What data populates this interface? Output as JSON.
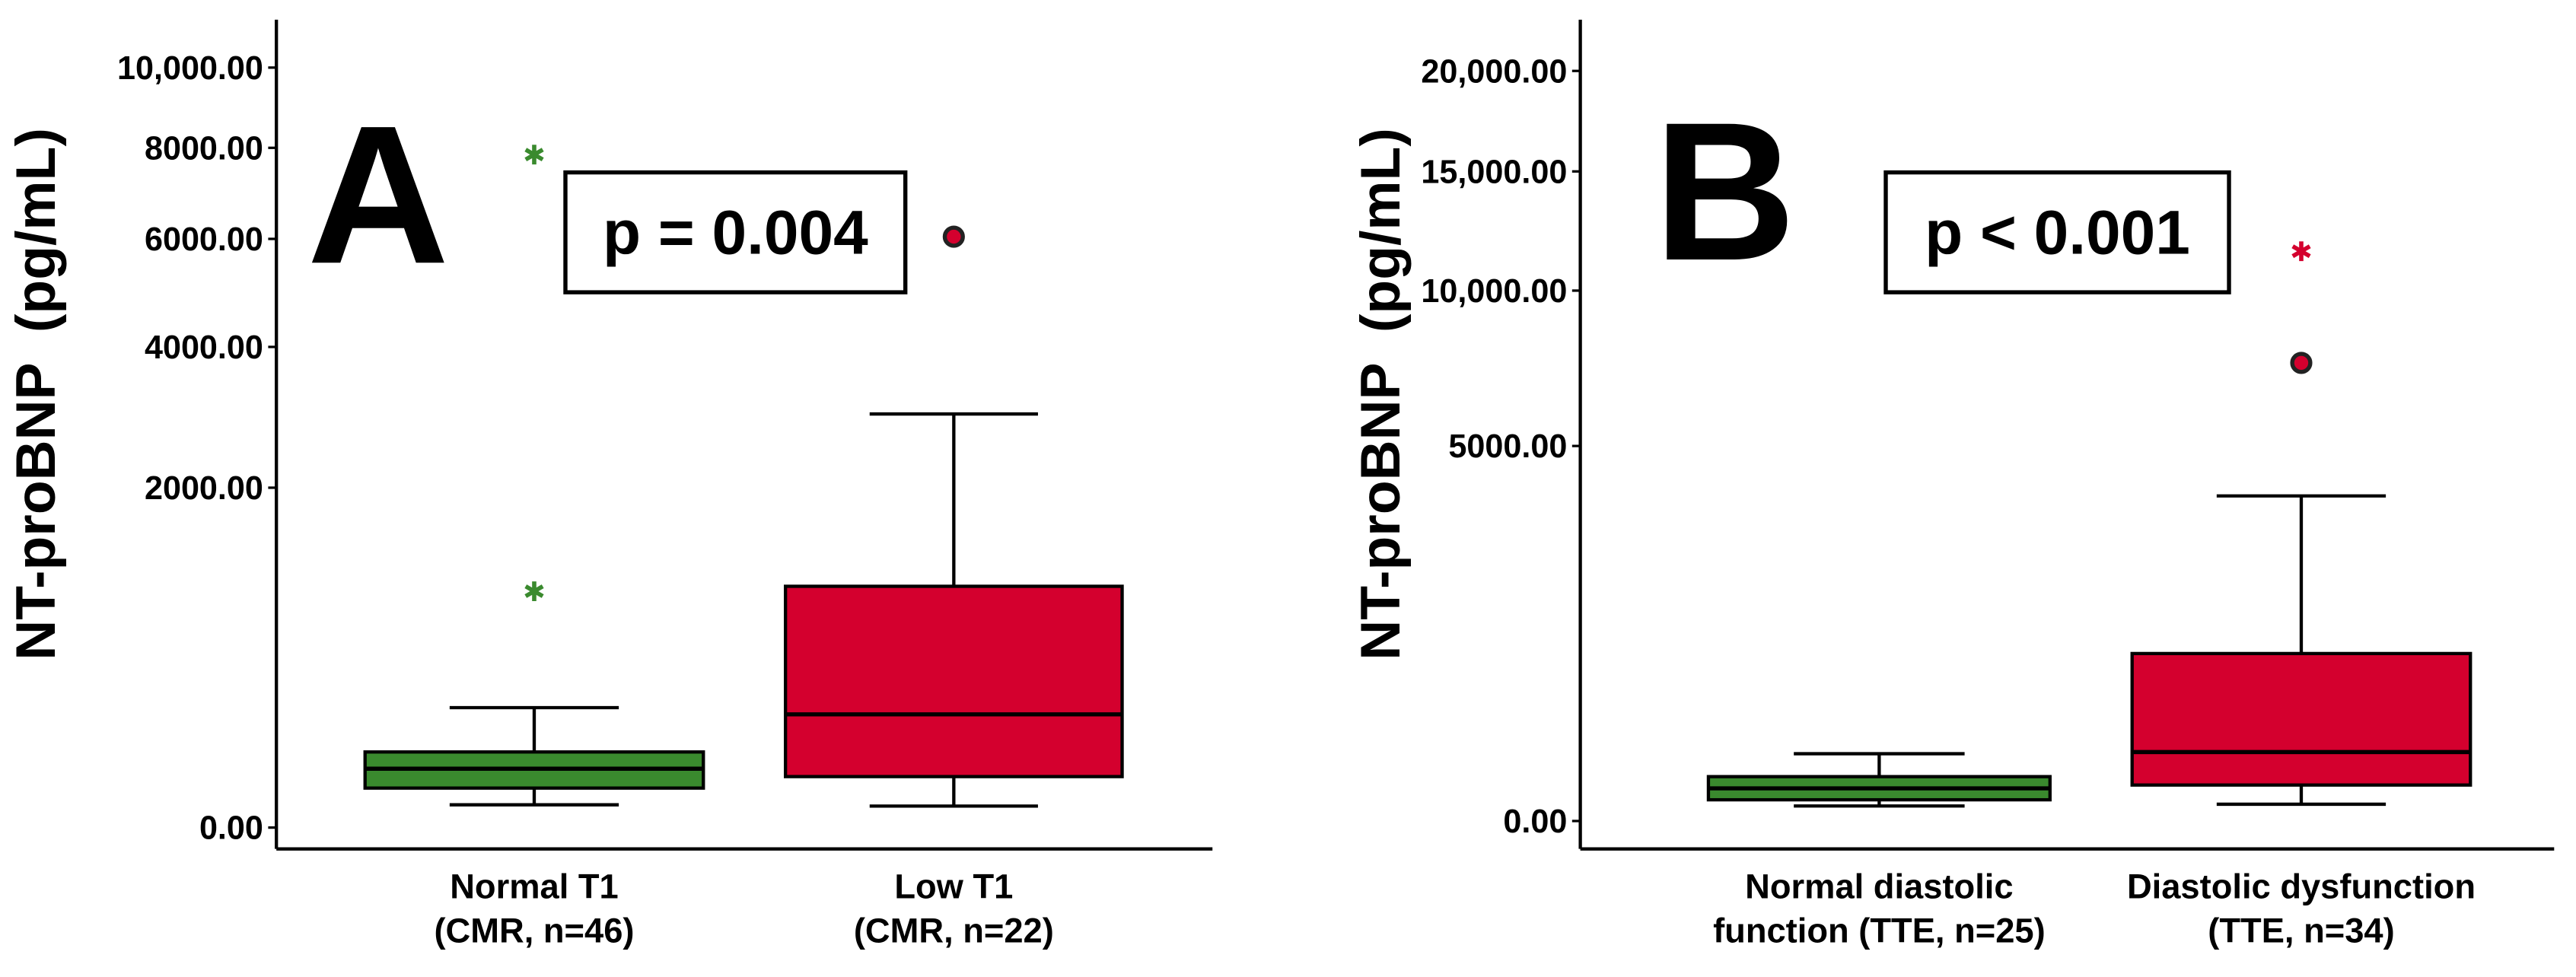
{
  "chart_data": [
    {
      "type": "box",
      "panel_label": "A",
      "annotation": "p = 0.004",
      "ylabel": "NT-proBNP  (pg/mL)",
      "yscale": "sqrt",
      "ylim": [
        0,
        11300
      ],
      "yticks": [
        {
          "value": 0,
          "label": "0.00"
        },
        {
          "value": 2000,
          "label": "2000.00"
        },
        {
          "value": 4000,
          "label": "4000.00"
        },
        {
          "value": 6000,
          "label": "6000.00"
        },
        {
          "value": 8000,
          "label": "8000.00"
        },
        {
          "value": 10000,
          "label": "10,000.00"
        }
      ],
      "categories": [
        [
          "Normal T1",
          "(CMR, n=46)"
        ],
        [
          "Low T1",
          "(CMR, n=22)"
        ]
      ],
      "series": [
        {
          "color": "#3a8a2e",
          "whisker_low": 9,
          "q1": 27,
          "median": 60,
          "q3": 99,
          "whisker_high": 249,
          "outliers": [
            {
              "value": 967,
              "marker": "star"
            },
            {
              "value": 7842,
              "marker": "star"
            }
          ]
        },
        {
          "color": "#d4002e",
          "whisker_low": 8,
          "q1": 45,
          "median": 222,
          "q3": 1008,
          "whisker_high": 2962,
          "outliers": [
            {
              "value": 6045,
              "marker": "circle"
            }
          ]
        }
      ]
    },
    {
      "type": "box",
      "panel_label": "B",
      "annotation": "p < 0.001",
      "ylabel": "NT-proBNP  (pg/mL)",
      "yscale": "sqrt",
      "ylim": [
        0,
        22825
      ],
      "yticks": [
        {
          "value": 0,
          "label": "0.00"
        },
        {
          "value": 5000,
          "label": "5000.00"
        },
        {
          "value": 10000,
          "label": "10,000.00"
        },
        {
          "value": 15000,
          "label": "15,000.00"
        },
        {
          "value": 20000,
          "label": "20,000.00"
        }
      ],
      "categories": [
        [
          "Normal diastolic",
          "function (TTE, n=25)"
        ],
        [
          "Diastolic dysfunction",
          "(TTE, n=34)"
        ]
      ],
      "series": [
        {
          "color": "#3a8a2e",
          "whisker_low": 8,
          "q1": 16,
          "median": 38,
          "q3": 70,
          "whisker_high": 161,
          "outliers": []
        },
        {
          "color": "#d4002e",
          "whisker_low": 10,
          "q1": 46,
          "median": 169,
          "q3": 997,
          "whisker_high": 3757,
          "outliers": [
            {
              "value": 7461,
              "marker": "circle"
            },
            {
              "value": 11541,
              "marker": "star"
            }
          ]
        }
      ]
    }
  ]
}
